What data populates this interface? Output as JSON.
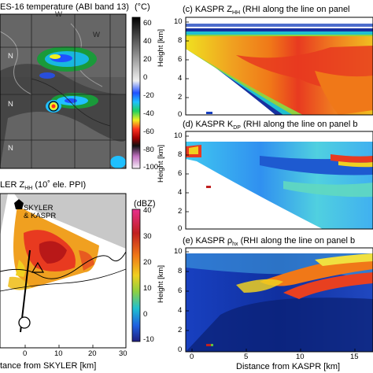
{
  "panel_a": {
    "title": "ES-16 temperature (ABI band 13)",
    "unit": "(°C)",
    "colorbar_ticks": [
      "60",
      "40",
      "20",
      "0",
      "-20",
      "-40",
      "-60",
      "-80",
      "-100"
    ],
    "map_labels": [
      "N",
      "N",
      "N",
      "W",
      "W"
    ]
  },
  "panel_b": {
    "title": "LER Z",
    "title_sub": "HH",
    "title_tail": " (10˚ ele. PPI)",
    "unit": "(dBZ)",
    "marker_label_1": "SKYLER",
    "marker_label_2": "& KASPR",
    "colorbar_ticks": [
      "40",
      "30",
      "20",
      "10",
      "0",
      "-10"
    ],
    "x_ticks": [
      "0",
      "10",
      "20",
      "30"
    ],
    "xlabel": "tance from SKYLER [km]"
  },
  "panel_c": {
    "title": "(c) KASPR Z",
    "title_sub": "HH",
    "title_tail": " (RHI along the line on panel",
    "ylabel": "Height [km]",
    "y_ticks": [
      "10",
      "8",
      "6",
      "4",
      "2",
      "0"
    ]
  },
  "panel_d": {
    "title": "(d) KASPR K",
    "title_sub": "DP",
    "title_tail": " (RHI along the line on panel b",
    "ylabel": "Height [km]",
    "y_ticks": [
      "10",
      "8",
      "6",
      "4",
      "2",
      "0"
    ]
  },
  "panel_e": {
    "title": "(e) KASPR ρ",
    "title_sub": "hx",
    "title_tail": " (RHI along the line on panel b",
    "ylabel": "Height [km]",
    "y_ticks": [
      "10",
      "8",
      "6",
      "4",
      "2",
      "0"
    ],
    "x_ticks": [
      "0",
      "5",
      "10",
      "15"
    ],
    "xlabel": "Distance from KASPR [km]"
  },
  "chart_data": [
    {
      "type": "heatmap",
      "panel": "a",
      "title": "ES-16 temperature (ABI band 13)",
      "colorbar_label": "(°C)",
      "colorbar_range": [
        -100,
        60
      ]
    },
    {
      "type": "heatmap",
      "panel": "b",
      "title": "LER ZHH (10˚ ele. PPI)",
      "colorbar_label": "(dBZ)",
      "colorbar_range": [
        -10,
        40
      ],
      "xlabel": "tance from SKYLER [km]",
      "xlim": [
        -5,
        30
      ]
    },
    {
      "type": "heatmap",
      "panel": "c",
      "title": "(c) KASPR ZHH (RHI along the line on panel",
      "ylabel": "Height [km]",
      "ylim": [
        0,
        10
      ],
      "xlim": [
        0,
        18
      ]
    },
    {
      "type": "heatmap",
      "panel": "d",
      "title": "(d) KASPR KDP (RHI along the line on panel b",
      "ylabel": "Height [km]",
      "ylim": [
        0,
        10
      ],
      "xlim": [
        0,
        18
      ]
    },
    {
      "type": "heatmap",
      "panel": "e",
      "title": "(e) KASPR ρhx (RHI along the line on panel b",
      "ylabel": "Height [km]",
      "ylim": [
        0,
        10
      ],
      "xlim": [
        0,
        18
      ],
      "xlabel": "Distance from KASPR [km]"
    }
  ]
}
